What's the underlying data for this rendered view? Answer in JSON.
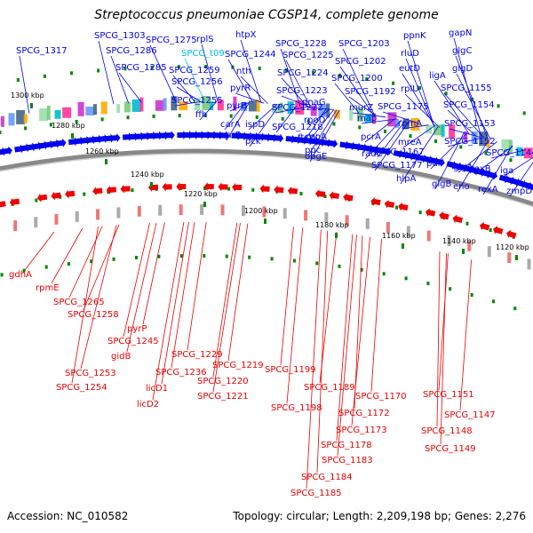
{
  "title": "Streptococcus pneumoniae CGSP14, complete genome",
  "footer": {
    "accession": "Accession: NC_010582",
    "summary": "Topology: circular; Length: 2,209,198 bp; Genes: 2,276"
  },
  "colors": {
    "forward": "#0000ee",
    "reverse": "#ee0000",
    "rna": "#00bbee",
    "tick": "#008800",
    "backbone": "#777777"
  },
  "scale_ticks": [
    "1300 kbp",
    "1280 kbp",
    "1260 kbp",
    "1240 kbp",
    "1220 kbp",
    "1200 kbp",
    "1180 kbp",
    "1160 kbp",
    "1140 kbp",
    "1120 kbp"
  ],
  "forward_labels": [
    "SPCG_1317",
    "SPCG_1303",
    "SPCG_1286",
    "SPCG_1285",
    "SPCG_1275",
    "rplS",
    "SPCG_t09",
    "SPCG_1259",
    "SPCG_1256",
    "SPCG_1255",
    "ffh",
    "htpX",
    "SPCG_1244",
    "nth",
    "pyrR",
    "pyrB",
    "carA",
    "carB",
    "ispD",
    "pck",
    "SPCG_1228",
    "SPCG_1225",
    "SPCG_1224",
    "SPCG_1223",
    "SPCG_1222",
    "SPCG_1218",
    "ftsW",
    "ppc",
    "SPCG_1203",
    "SPCG_1202",
    "SPCG_1200",
    "SPCG_1192",
    "dnaG",
    "murZ",
    "map",
    "rpoD",
    "cpoA",
    "pcrA",
    "obgE",
    "radC",
    "ppnK",
    "rluD",
    "eutD",
    "rplU",
    "SPCG_1175",
    "rpmA",
    "SPCG_1167",
    "mreA",
    "SPCG_1177",
    "hlpA",
    "gapN",
    "glgC",
    "glgD",
    "ligA",
    "SPCG_1155",
    "SPCG_1154",
    "SPCG_1153",
    "SPCG_1152",
    "pulI",
    "glgA",
    "glgB",
    "eno",
    "SPCG_1144",
    "rexB",
    "iga",
    "rexA",
    "zmpD"
  ],
  "reverse_labels": [
    "gdhA",
    "rpmE",
    "SPCG_1265",
    "SPCG_1258",
    "pyrP",
    "SPCG_1245",
    "gidB",
    "SPCG_1253",
    "SPCG_1254",
    "SPCG_1236",
    "licD1",
    "licD2",
    "SPCG_1229",
    "SPCG_1219",
    "SPCG_1220",
    "SPCG_1221",
    "SPCG_1199",
    "SPCG_1198",
    "SPCG_1189",
    "SPCG_1183",
    "SPCG_1184",
    "SPCG_1185",
    "SPCG_1178",
    "SPCG_1173",
    "SPCG_1172",
    "SPCG_1170",
    "SPCG_1151",
    "SPCG_1147",
    "SPCG_1148",
    "SPCG_1149"
  ]
}
